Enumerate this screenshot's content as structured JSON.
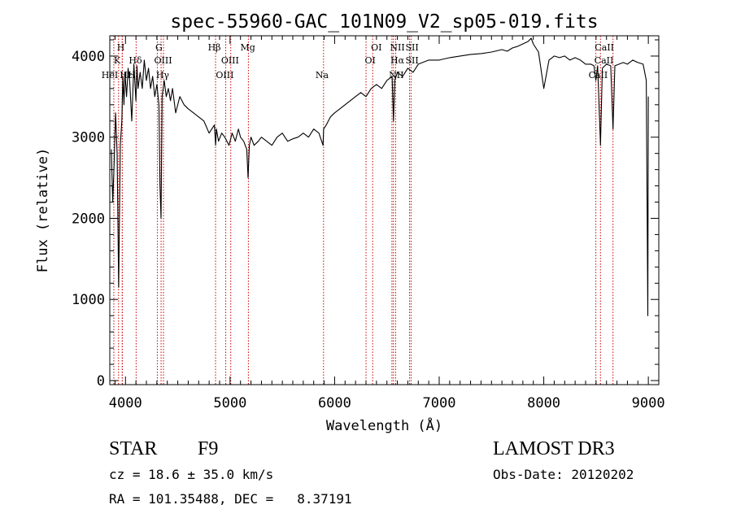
{
  "chart_data": {
    "type": "line",
    "title": "spec-55960-GAC_101N09_V2_sp05-019.fits",
    "xlabel": "Wavelength (Å)",
    "ylabel": "Flux (relative)",
    "xlim": [
      3850,
      9100
    ],
    "ylim": [
      -50,
      4250
    ],
    "xticks": [
      4000,
      5000,
      6000,
      7000,
      8000,
      9000
    ],
    "yticks": [
      0,
      1000,
      2000,
      3000,
      4000
    ],
    "xtick_labels": [
      "4000",
      "5000",
      "6000",
      "7000",
      "8000",
      "9000"
    ],
    "ytick_labels": [
      "0",
      "1000",
      "2000",
      "3000",
      "4000"
    ],
    "series": [
      {
        "name": "spectrum",
        "x": [
          3865,
          3878,
          3890,
          3905,
          3920,
          3935,
          3950,
          3965,
          3975,
          3985,
          3995,
          4010,
          4025,
          4040,
          4060,
          4080,
          4100,
          4110,
          4120,
          4140,
          4160,
          4180,
          4200,
          4220,
          4240,
          4260,
          4280,
          4300,
          4320,
          4330,
          4340,
          4350,
          4370,
          4390,
          4410,
          4430,
          4450,
          4480,
          4520,
          4560,
          4600,
          4650,
          4700,
          4750,
          4800,
          4850,
          4862,
          4870,
          4890,
          4920,
          4950,
          4990,
          5020,
          5050,
          5080,
          5100,
          5130,
          5160,
          5172,
          5185,
          5200,
          5230,
          5270,
          5300,
          5350,
          5400,
          5450,
          5500,
          5550,
          5600,
          5650,
          5700,
          5750,
          5800,
          5850,
          5889,
          5895,
          5920,
          5960,
          6000,
          6050,
          6100,
          6150,
          6200,
          6250,
          6300,
          6350,
          6400,
          6450,
          6500,
          6550,
          6563,
          6575,
          6600,
          6650,
          6700,
          6750,
          6800,
          6900,
          7000,
          7100,
          7200,
          7300,
          7400,
          7500,
          7600,
          7650,
          7700,
          7750,
          7800,
          7850,
          7880,
          7900,
          7950,
          8000,
          8050,
          8100,
          8150,
          8200,
          8250,
          8300,
          8350,
          8400,
          8450,
          8480,
          8498,
          8515,
          8542,
          8560,
          8600,
          8640,
          8662,
          8680,
          8720,
          8760,
          8800,
          8850,
          8900,
          8950,
          8980,
          8995,
          9000
        ],
        "y": [
          2850,
          2200,
          2600,
          3300,
          2800,
          1150,
          2900,
          3200,
          3750,
          3400,
          3800,
          3500,
          3850,
          3700,
          3200,
          3900,
          3450,
          3880,
          3600,
          3800,
          3600,
          3950,
          3700,
          3850,
          3600,
          3750,
          3500,
          3650,
          3400,
          2400,
          2000,
          3500,
          3700,
          3500,
          3600,
          3450,
          3600,
          3300,
          3500,
          3400,
          3350,
          3300,
          3250,
          3200,
          3050,
          3150,
          2900,
          3100,
          2950,
          3050,
          3000,
          2900,
          3050,
          2950,
          3100,
          3000,
          2950,
          2850,
          2500,
          2900,
          3000,
          2900,
          2950,
          3000,
          2950,
          2900,
          3000,
          3050,
          2950,
          2980,
          3000,
          3050,
          3000,
          3100,
          3050,
          2900,
          3100,
          3150,
          3250,
          3300,
          3350,
          3400,
          3450,
          3500,
          3550,
          3500,
          3600,
          3650,
          3600,
          3700,
          3750,
          3200,
          3700,
          3800,
          3750,
          3850,
          3800,
          3900,
          3950,
          3950,
          3980,
          4000,
          4020,
          4030,
          4050,
          4080,
          4060,
          4100,
          4120,
          4150,
          4180,
          4220,
          4150,
          4050,
          3600,
          3950,
          4000,
          3980,
          4000,
          3950,
          3980,
          3950,
          3900,
          3900,
          3880,
          3700,
          3880,
          2900,
          3850,
          3900,
          3880,
          3100,
          3880,
          3900,
          3920,
          3900,
          3950,
          3920,
          3900,
          3700,
          800,
          3500
        ]
      }
    ],
    "lines": [
      {
        "name": "K",
        "x": 3933.7
      },
      {
        "name": "H",
        "x": 3968.5
      },
      {
        "name": "HeI",
        "x": 3888.6
      },
      {
        "name": "Hδ",
        "x": 4101.7
      },
      {
        "name": "Hε",
        "x": 3970.1
      },
      {
        "name": "G",
        "x": 4304.4
      },
      {
        "name": "Hγ",
        "x": 4340.5
      },
      {
        "name": "OIII",
        "x": 4363.2
      },
      {
        "name": "Hβ",
        "x": 4861.3
      },
      {
        "name": "OIII",
        "x": 4958.9
      },
      {
        "name": "OIII",
        "x": 5006.8
      },
      {
        "name": "Mg",
        "x": 5175.3
      },
      {
        "name": "Na",
        "x": 5894.0
      },
      {
        "name": "OI",
        "x": 6300.3
      },
      {
        "name": "OI",
        "x": 6363.8
      },
      {
        "name": "NII",
        "x": 6548.0
      },
      {
        "name": "Hα",
        "x": 6562.8
      },
      {
        "name": "NII",
        "x": 6583.4
      },
      {
        "name": "SII",
        "x": 6716.4
      },
      {
        "name": "SII",
        "x": 6730.8
      },
      {
        "name": "CaII",
        "x": 8498.0
      },
      {
        "name": "CaII",
        "x": 8542.1
      },
      {
        "name": "CaII",
        "x": 8662.1
      }
    ],
    "line_labels": [
      {
        "text": "H",
        "row": 1,
        "x": 3955
      },
      {
        "text": "K",
        "row": 2,
        "x": 3920
      },
      {
        "text": "Hδ",
        "row": 2,
        "x": 4095
      },
      {
        "text": "HeI",
        "row": 3,
        "x": 3850
      },
      {
        "text": "Hε",
        "row": 3,
        "x": 4005
      },
      {
        "text": "H",
        "row": 3,
        "x": 4060
      },
      {
        "text": "G",
        "row": 1,
        "x": 4320
      },
      {
        "text": "OIII",
        "row": 2,
        "x": 4360
      },
      {
        "text": "Hγ",
        "row": 3,
        "x": 4355
      },
      {
        "text": "Hβ",
        "row": 1,
        "x": 4850
      },
      {
        "text": "OIII",
        "row": 2,
        "x": 5000
      },
      {
        "text": "OIII",
        "row": 3,
        "x": 4950
      },
      {
        "text": "Mg",
        "row": 1,
        "x": 5170
      },
      {
        "text": "Na",
        "row": 3,
        "x": 5880
      },
      {
        "text": "OI",
        "row": 1,
        "x": 6400
      },
      {
        "text": "OI",
        "row": 2,
        "x": 6340
      },
      {
        "text": "NII",
        "row": 1,
        "x": 6600
      },
      {
        "text": "SII",
        "row": 1,
        "x": 6740
      },
      {
        "text": "Hα",
        "row": 2,
        "x": 6600
      },
      {
        "text": "SII",
        "row": 2,
        "x": 6740
      },
      {
        "text": "NII",
        "row": 3,
        "x": 6590
      },
      {
        "text": "CaII",
        "row": 1,
        "x": 8580
      },
      {
        "text": "CaII",
        "row": 2,
        "x": 8575
      },
      {
        "text": "CaII",
        "row": 3,
        "x": 8520
      }
    ]
  },
  "info": {
    "object_class": "STAR",
    "subclass": "F9",
    "cz": "cz = 18.6 ± 35.0 km/s",
    "coords": "RA = 101.35488, DEC =   8.37191",
    "survey": "LAMOST DR3",
    "obs_date": "Obs-Date: 20120202"
  },
  "colors": {
    "spectrum": "#000000",
    "line_marker": "#cc0000",
    "axes": "#000000",
    "background": "#ffffff"
  }
}
